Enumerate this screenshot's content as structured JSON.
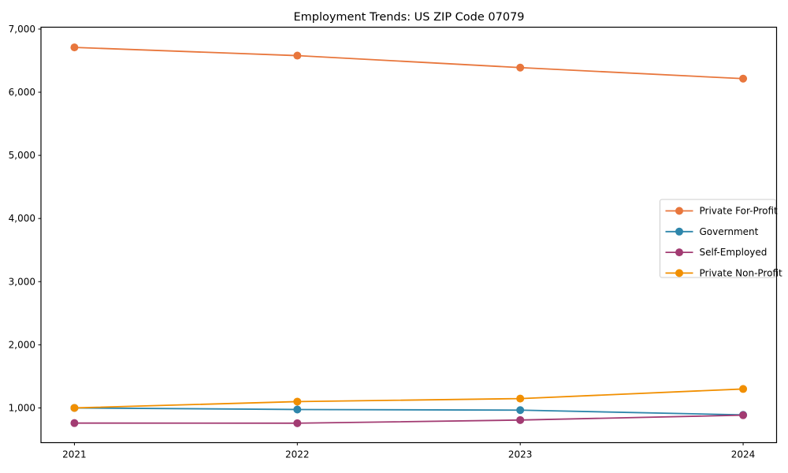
{
  "chart_data": {
    "type": "line",
    "title": "Employment Trends: US ZIP Code 07079",
    "xlabel": "",
    "ylabel": "",
    "x": [
      2021,
      2022,
      2023,
      2024
    ],
    "series": [
      {
        "name": "Private For-Profit",
        "color": "#E8763C",
        "values": [
          6710,
          6580,
          6390,
          6215
        ]
      },
      {
        "name": "Government",
        "color": "#2E86AB",
        "values": [
          1000,
          975,
          965,
          890
        ]
      },
      {
        "name": "Self-Employed",
        "color": "#A23B72",
        "values": [
          760,
          758,
          808,
          885
        ]
      },
      {
        "name": "Private Non-Profit",
        "color": "#F18F01",
        "values": [
          1000,
          1100,
          1148,
          1300
        ]
      }
    ],
    "xticks": [
      2021,
      2022,
      2023,
      2024
    ],
    "yticks": [
      1000,
      2000,
      3000,
      4000,
      5000,
      6000,
      7000
    ],
    "xlim": [
      2020.85,
      2024.15
    ],
    "ylim": [
      450,
      7030
    ],
    "grid": false,
    "legend_position": "center right",
    "marker": "circle",
    "colors": {
      "background": "#ffffff",
      "spine": "#000000",
      "legend_border": "#cccccc",
      "legend_background": "#ffffff"
    }
  }
}
